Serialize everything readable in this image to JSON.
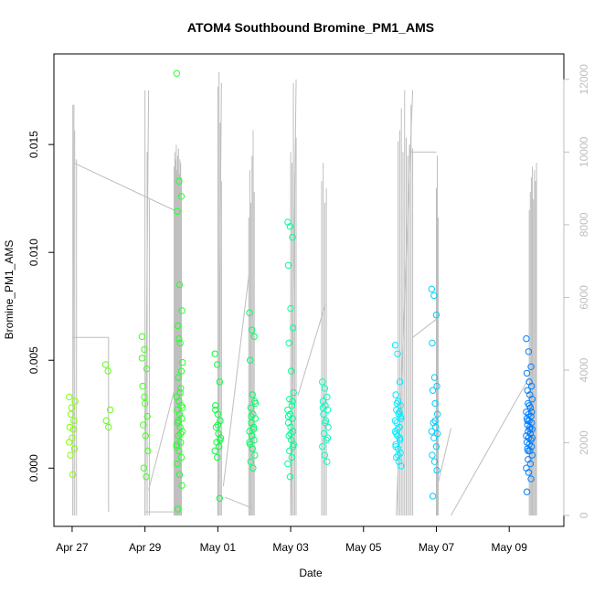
{
  "chart_data": {
    "type": "scatter",
    "title": "ATOM4 Southbound Bromine_PM1_AMS",
    "xlabel": "Date",
    "ylabel": "Bromine_PM1_AMS",
    "x_tick_labels": [
      "Apr 27",
      "Apr 29",
      "May 01",
      "May 03",
      "May 05",
      "May 07",
      "May 09"
    ],
    "y_tick_labels": [
      "0.000",
      "0.005",
      "0.010",
      "0.015"
    ],
    "y_ticks": [
      0.0,
      0.005,
      0.01,
      0.015
    ],
    "y2_tick_labels": [
      "0",
      "2000",
      "4000",
      "6000",
      "8000",
      "10000",
      "12000"
    ],
    "y2_ticks": [
      0,
      2000,
      4000,
      6000,
      8000,
      10000,
      12000
    ],
    "x_tick_days": [
      0,
      2,
      4,
      6,
      8,
      10,
      12
    ],
    "xlim_days": [
      -0.5,
      13.5
    ],
    "ylim": [
      -0.0027,
      0.0192
    ],
    "y2lim": [
      -300,
      12700
    ],
    "grid": false,
    "point_color_gradient": [
      "#80ff00",
      "#00ff40",
      "#00ffff",
      "#0080ff"
    ],
    "line_color": "#bebebe",
    "cluster_centers_days": [
      0.0,
      1.0,
      2.0,
      2.95,
      4.0,
      4.95,
      6.0,
      6.95,
      8.95,
      9.95,
      12.55
    ],
    "cluster_values": [
      [
        0.0033,
        0.0028,
        0.0022,
        0.0019,
        0.0014,
        0.0009,
        0.0006,
        -0.0003,
        0.0031,
        0.0025,
        0.0018,
        0.0012
      ],
      [
        0.0048,
        0.0045,
        0.0027,
        0.0022,
        0.0019
      ],
      [
        0.0061,
        0.0055,
        0.0046,
        0.0038,
        0.003,
        0.0024,
        0.002,
        0.0015,
        0.0008,
        0.0,
        -0.0004,
        0.0051,
        0.0033
      ],
      [
        0.0183,
        0.0133,
        0.0126,
        0.0119,
        0.0085,
        0.0073,
        0.0066,
        0.0058,
        0.0049,
        0.0042,
        0.0037,
        0.0033,
        0.0031,
        0.0029,
        0.0027,
        0.0025,
        0.0023,
        0.0021,
        0.0019,
        0.0017,
        0.0015,
        0.0012,
        0.001,
        0.0008,
        0.0005,
        0.0002,
        -0.0003,
        -0.0008,
        -0.0019,
        0.0035,
        0.0028,
        0.0022,
        0.0016,
        0.0011,
        0.006,
        0.0045
      ],
      [
        0.0053,
        0.0048,
        0.004,
        0.0029,
        0.0025,
        0.0022,
        0.0019,
        0.0016,
        0.0014,
        0.0012,
        0.001,
        0.0008,
        0.0005,
        -0.0014,
        0.0027,
        0.002,
        0.0013
      ],
      [
        0.0072,
        0.0064,
        0.0061,
        0.005,
        0.0034,
        0.0031,
        0.0028,
        0.0025,
        0.0023,
        0.0021,
        0.0019,
        0.0017,
        0.0015,
        0.0013,
        0.0011,
        0.0009,
        0.0006,
        0.0003,
        0.0,
        0.003,
        0.0024,
        0.0018,
        0.0012
      ],
      [
        0.0114,
        0.0112,
        0.0107,
        0.0094,
        0.0074,
        0.0065,
        0.0058,
        0.0045,
        0.0035,
        0.0032,
        0.0029,
        0.0027,
        0.0025,
        0.0023,
        0.0021,
        0.0019,
        0.0017,
        0.0015,
        0.0013,
        0.0011,
        0.0008,
        0.0005,
        0.0002,
        -0.0004,
        0.0031,
        0.0024,
        0.0016,
        0.001
      ],
      [
        0.004,
        0.0037,
        0.0033,
        0.0031,
        0.0029,
        0.0027,
        0.0025,
        0.0022,
        0.0019,
        0.0016,
        0.0013,
        0.001,
        0.0006,
        0.0003,
        0.0028,
        0.0021,
        0.0014
      ],
      [
        0.0057,
        0.0053,
        0.004,
        0.0034,
        0.0031,
        0.0029,
        0.0027,
        0.0025,
        0.0023,
        0.0021,
        0.0019,
        0.0017,
        0.0015,
        0.0013,
        0.0011,
        0.0009,
        0.0007,
        0.0005,
        0.0003,
        0.0001,
        0.003,
        0.0026,
        0.0022,
        0.0018,
        0.0014,
        0.001,
        0.0006,
        0.0024,
        0.0016
      ],
      [
        0.0083,
        0.008,
        0.0071,
        0.0058,
        0.0042,
        0.0038,
        0.0036,
        0.003,
        0.0025,
        0.0021,
        0.0019,
        0.0017,
        0.0014,
        0.001,
        0.0006,
        0.0003,
        -0.0001,
        -0.0013,
        0.0022,
        0.0016
      ],
      [
        0.006,
        0.0054,
        0.0047,
        0.0044,
        0.004,
        0.0038,
        0.0036,
        0.0034,
        0.0032,
        0.003,
        0.0028,
        0.0026,
        0.0025,
        0.0024,
        0.0023,
        0.0022,
        0.0021,
        0.002,
        0.0019,
        0.0018,
        0.0017,
        0.0016,
        0.0015,
        0.0014,
        0.0013,
        0.0012,
        0.0011,
        0.001,
        0.0009,
        0.0008,
        0.0006,
        0.0004,
        0.0002,
        0.0,
        -0.0002,
        -0.0005,
        -0.0011,
        0.0029,
        0.0026,
        0.0022,
        0.0018,
        0.0014,
        0.0008
      ]
    ],
    "line_segments": [
      {
        "y2": [
          0,
          11300
        ],
        "x_days": [
          0.02,
          0.05
        ]
      },
      {
        "y2": [
          9700,
          8400
        ],
        "x_days": [
          0.05,
          2.8
        ]
      },
      {
        "y2": [
          4900,
          4900
        ],
        "x_days": [
          0.0,
          1.0
        ]
      },
      {
        "y2": [
          4900,
          100
        ],
        "x_days": [
          1.0,
          1.0
        ]
      },
      {
        "y2": [
          0,
          11700
        ],
        "x_days": [
          2.0,
          2.1
        ]
      },
      {
        "y2": [
          100,
          100
        ],
        "x_days": [
          2.0,
          3.0
        ]
      },
      {
        "y2": [
          700,
          4200
        ],
        "x_days": [
          2.1,
          3.0
        ]
      },
      {
        "y2": [
          0,
          11900
        ],
        "x_days": [
          4.0,
          4.1
        ]
      },
      {
        "y2": [
          800,
          6600
        ],
        "x_days": [
          4.15,
          4.85
        ]
      },
      {
        "y2": [
          500,
          200
        ],
        "x_days": [
          4.2,
          4.95
        ]
      },
      {
        "y2": [
          0,
          12000
        ],
        "x_days": [
          6.0,
          6.15
        ]
      },
      {
        "y2": [
          3300,
          5800
        ],
        "x_days": [
          6.2,
          6.95
        ]
      },
      {
        "y2": [
          0,
          11700
        ],
        "x_days": [
          8.9,
          9.35
        ]
      },
      {
        "y2": [
          10000,
          10000
        ],
        "x_days": [
          9.3,
          10.0
        ]
      },
      {
        "y2": [
          4900,
          5400
        ],
        "x_days": [
          9.35,
          10.0
        ]
      },
      {
        "y2": [
          900,
          2400
        ],
        "x_days": [
          10.05,
          10.4
        ]
      },
      {
        "y2": [
          0,
          3800
        ],
        "x_days": [
          10.4,
          12.55
        ]
      }
    ],
    "spike_groups": [
      {
        "x_days": [
          0.02,
          0.12
        ],
        "peaks": [
          11300,
          10600,
          9800
        ]
      },
      {
        "x_days": [
          2.0,
          2.12
        ],
        "peaks": [
          11700,
          10000,
          8700
        ]
      },
      {
        "x_days": [
          2.8,
          3.0
        ],
        "peaks": [
          9600,
          10000,
          9800,
          10200,
          9500,
          9900,
          10100,
          9400,
          9800,
          9700,
          9300
        ]
      },
      {
        "x_days": [
          4.0,
          4.1
        ],
        "peaks": [
          11800,
          12200,
          10800,
          9200
        ]
      },
      {
        "x_days": [
          4.85,
          5.0
        ],
        "peaks": [
          8200,
          9500,
          8600,
          9900,
          10600,
          8900
        ]
      },
      {
        "x_days": [
          6.0,
          6.15
        ],
        "peaks": [
          10000,
          9700,
          11900,
          9400,
          10400
        ]
      },
      {
        "x_days": [
          6.85,
          6.98
        ],
        "peaks": [
          9200,
          9700,
          8600,
          9000
        ]
      },
      {
        "x_days": [
          8.95,
          9.35
        ],
        "peaks": [
          10300,
          10600,
          11200,
          10000,
          11700,
          10400,
          9900,
          10200,
          11300,
          10100
        ]
      },
      {
        "x_days": [
          10.0,
          10.05
        ],
        "peaks": [
          9000,
          9900,
          8200
        ]
      },
      {
        "x_days": [
          12.55,
          12.75
        ],
        "peaks": [
          8400,
          8900,
          9300,
          9600,
          8700,
          9500,
          9200,
          9700
        ]
      }
    ]
  }
}
